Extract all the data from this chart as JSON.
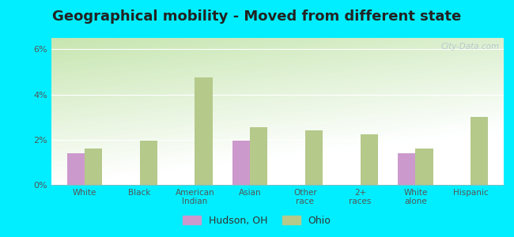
{
  "title": "Geographical mobility - Moved from different state",
  "categories": [
    "White",
    "Black",
    "American\nIndian",
    "Asian",
    "Other\nrace",
    "2+\nraces",
    "White\nalone",
    "Hispanic"
  ],
  "hudson_values": [
    1.4,
    0.0,
    0.0,
    1.95,
    0.0,
    0.0,
    1.4,
    0.0
  ],
  "ohio_values": [
    1.6,
    1.95,
    4.75,
    2.55,
    2.4,
    2.25,
    1.6,
    3.0
  ],
  "hudson_color": "#cc99cc",
  "ohio_color": "#b5c98a",
  "ylim": [
    0,
    6.5
  ],
  "yticks": [
    0,
    2,
    4,
    6
  ],
  "ytick_labels": [
    "0%",
    "2%",
    "4%",
    "6%"
  ],
  "outer_bg": "#00eeff",
  "bar_width": 0.32,
  "title_fontsize": 13,
  "legend_labels": [
    "Hudson, OH",
    "Ohio"
  ],
  "watermark": "City-Data.com"
}
